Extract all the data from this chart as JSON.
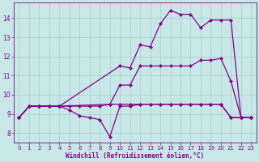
{
  "bg_color": "#c8e8e8",
  "line_color": "#880088",
  "grid_color": "#aacccc",
  "xlabel": "Windchill (Refroidissement éolien,°C)",
  "xlabel_color": "#880088",
  "tick_color": "#880088",
  "xlim": [
    -0.5,
    23.5
  ],
  "ylim": [
    7.5,
    14.8
  ],
  "yticks": [
    8,
    9,
    10,
    11,
    12,
    13,
    14
  ],
  "xticks": [
    0,
    1,
    2,
    3,
    4,
    5,
    6,
    7,
    8,
    9,
    10,
    11,
    12,
    13,
    14,
    15,
    16,
    17,
    18,
    19,
    20,
    21,
    22,
    23
  ],
  "lines": [
    {
      "x": [
        0,
        1,
        2,
        3,
        4,
        10,
        11,
        12,
        13,
        14,
        15,
        16,
        17,
        18,
        19,
        20,
        21,
        22,
        23
      ],
      "y": [
        8.8,
        9.4,
        9.4,
        9.4,
        9.4,
        11.5,
        11.4,
        12.6,
        12.5,
        13.7,
        14.4,
        14.2,
        14.2,
        13.5,
        13.9,
        13.9,
        13.9,
        8.8,
        8.8
      ]
    },
    {
      "x": [
        0,
        1,
        2,
        3,
        4,
        9,
        10,
        11,
        12,
        13,
        14,
        15,
        16,
        17,
        18,
        19,
        20,
        21,
        22,
        23
      ],
      "y": [
        8.8,
        9.4,
        9.4,
        9.4,
        9.4,
        9.5,
        10.5,
        10.5,
        11.5,
        11.5,
        11.5,
        11.5,
        11.5,
        11.5,
        11.8,
        11.8,
        11.9,
        10.7,
        8.8,
        8.8
      ]
    },
    {
      "x": [
        0,
        1,
        2,
        3,
        4,
        5,
        6,
        7,
        8,
        9,
        10,
        11,
        12,
        13,
        14,
        15,
        16,
        17,
        18,
        19,
        20,
        21,
        22,
        23
      ],
      "y": [
        8.8,
        9.4,
        9.4,
        9.4,
        9.4,
        9.4,
        9.4,
        9.4,
        9.4,
        9.5,
        9.5,
        9.5,
        9.5,
        9.5,
        9.5,
        9.5,
        9.5,
        9.5,
        9.5,
        9.5,
        9.5,
        8.8,
        8.8,
        8.8
      ]
    },
    {
      "x": [
        0,
        1,
        2,
        3,
        4,
        5,
        6,
        7,
        8,
        9,
        10,
        11,
        12,
        13,
        14,
        15,
        16,
        17,
        18,
        19,
        20,
        21,
        22,
        23
      ],
      "y": [
        8.8,
        9.4,
        9.4,
        9.4,
        9.4,
        9.2,
        8.9,
        8.8,
        8.7,
        7.8,
        9.4,
        9.4,
        9.5,
        9.5,
        9.5,
        9.5,
        9.5,
        9.5,
        9.5,
        9.5,
        9.5,
        8.8,
        8.8,
        8.8
      ]
    }
  ]
}
